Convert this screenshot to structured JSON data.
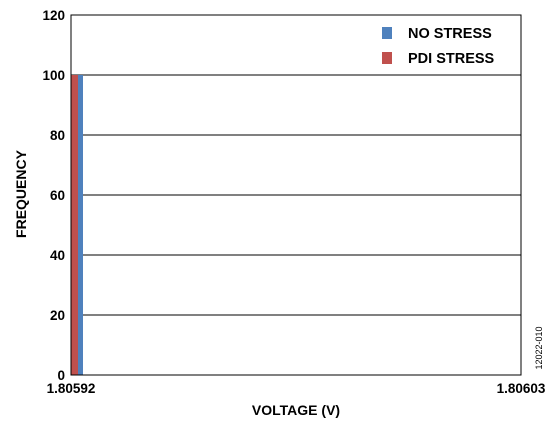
{
  "chart_data": {
    "type": "bar",
    "xlabel": "VOLTAGE (V)",
    "ylabel": "FREQUENCY",
    "ylim": [
      0,
      120
    ],
    "yticks": [
      0,
      20,
      40,
      60,
      80,
      100,
      120
    ],
    "xlim": [
      1.80592,
      1.80603
    ],
    "xtick_labels": [
      "1.80592",
      "1.80603"
    ],
    "grid": true,
    "legend_position": "top-right",
    "series": [
      {
        "name": "NO STRESS",
        "color": "#4f81bd",
        "x": [
          1.80592
        ],
        "values": [
          100
        ]
      },
      {
        "name": "PDI STRESS",
        "color": "#c0504d",
        "x": [
          1.80592
        ],
        "values": [
          100
        ]
      }
    ]
  },
  "figure_code": "12022-010"
}
